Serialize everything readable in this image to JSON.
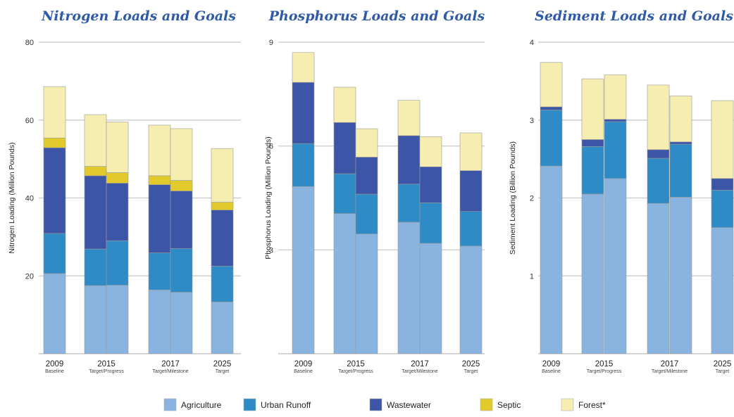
{
  "stack_order": [
    "Agriculture",
    "Urban Runoff",
    "Wastewater",
    "Septic",
    "Forest*"
  ],
  "legend": [
    {
      "label": "Agriculture",
      "color": "#8ab4e0"
    },
    {
      "label": "Urban Runoff",
      "color": "#2f8bc6"
    },
    {
      "label": "Wastewater",
      "color": "#3d55a6"
    },
    {
      "label": "Septic",
      "color": "#e2ca2d"
    },
    {
      "label": "Forest*",
      "color": "#f5eeb0"
    }
  ],
  "chart_data": [
    {
      "type": "bar",
      "stacked": true,
      "title": "Nitrogen Loads and Goals",
      "ylabel": "Nitrogen Loading (Million Pounds)",
      "ylim": [
        0,
        80
      ],
      "yticks": [
        "20",
        "40",
        "60",
        "80"
      ],
      "grid": true,
      "groups": [
        {
          "year": "2009",
          "sub": "Baseline",
          "bars": 1
        },
        {
          "year": "2015",
          "sub": "Target/Progress",
          "bars": 2
        },
        {
          "year": "2017",
          "sub": "Target/Milestone",
          "bars": 2
        },
        {
          "year": "2025",
          "sub": "Target",
          "bars": 1
        }
      ],
      "series": [
        {
          "name": "Agriculture",
          "values": [
            20.6,
            17.5,
            17.6,
            16.4,
            15.8,
            13.3
          ]
        },
        {
          "name": "Urban Runoff",
          "values": [
            10.3,
            9.4,
            11.4,
            9.5,
            11.2,
            9.2
          ]
        },
        {
          "name": "Wastewater",
          "values": [
            22.0,
            18.8,
            14.8,
            17.5,
            14.8,
            14.4
          ]
        },
        {
          "name": "Septic",
          "values": [
            2.5,
            2.4,
            2.7,
            2.3,
            2.7,
            2.0
          ]
        },
        {
          "name": "Forest*",
          "values": [
            13.2,
            13.3,
            13.0,
            13.0,
            13.3,
            13.8
          ]
        }
      ]
    },
    {
      "type": "bar",
      "stacked": true,
      "title": "Phosphorus Loads and Goals",
      "ylabel": "Phosphorus Loading (Million Pounds)",
      "ylim": [
        0,
        9
      ],
      "yticks": [
        "3",
        "6",
        "9"
      ],
      "grid": true,
      "groups": [
        {
          "year": "2009",
          "sub": "Baseline",
          "bars": 1
        },
        {
          "year": "2015",
          "sub": "Target/Progress",
          "bars": 2
        },
        {
          "year": "2017",
          "sub": "Target/Milestone",
          "bars": 2
        },
        {
          "year": "2025",
          "sub": "Target",
          "bars": 1
        }
      ],
      "series": [
        {
          "name": "Agriculture",
          "values": [
            4.83,
            4.05,
            3.46,
            3.8,
            3.19,
            3.11
          ]
        },
        {
          "name": "Urban Runoff",
          "values": [
            1.24,
            1.15,
            1.15,
            1.1,
            1.17,
            1.0
          ]
        },
        {
          "name": "Wastewater",
          "values": [
            1.77,
            1.48,
            1.07,
            1.4,
            1.04,
            1.18
          ]
        },
        {
          "name": "Septic",
          "values": [
            0,
            0,
            0,
            0,
            0,
            0
          ]
        },
        {
          "name": "Forest*",
          "values": [
            0.86,
            1.02,
            0.82,
            1.02,
            0.87,
            1.09
          ]
        }
      ]
    },
    {
      "type": "bar",
      "stacked": true,
      "title": "Sediment Loads and Goals",
      "ylabel": "Sediment Loading (Billion Pounds)",
      "ylim": [
        0,
        4
      ],
      "yticks": [
        "1",
        "2",
        "3",
        "4"
      ],
      "grid": true,
      "groups": [
        {
          "year": "2009",
          "sub": "Baseline",
          "bars": 1
        },
        {
          "year": "2015",
          "sub": "Target/Progress",
          "bars": 2
        },
        {
          "year": "2017",
          "sub": "Target/Milestone",
          "bars": 2
        },
        {
          "year": "2025",
          "sub": "Target",
          "bars": 1
        }
      ],
      "series": [
        {
          "name": "Agriculture",
          "values": [
            2.41,
            2.05,
            2.25,
            1.93,
            2.01,
            1.62
          ]
        },
        {
          "name": "Urban Runoff",
          "values": [
            0.72,
            0.61,
            0.73,
            0.58,
            0.68,
            0.48
          ]
        },
        {
          "name": "Wastewater",
          "values": [
            0.04,
            0.09,
            0.03,
            0.11,
            0.03,
            0.15
          ]
        },
        {
          "name": "Septic",
          "values": [
            0,
            0,
            0,
            0,
            0,
            0
          ]
        },
        {
          "name": "Forest*",
          "values": [
            0.57,
            0.78,
            0.57,
            0.83,
            0.59,
            1.0
          ]
        }
      ]
    }
  ]
}
